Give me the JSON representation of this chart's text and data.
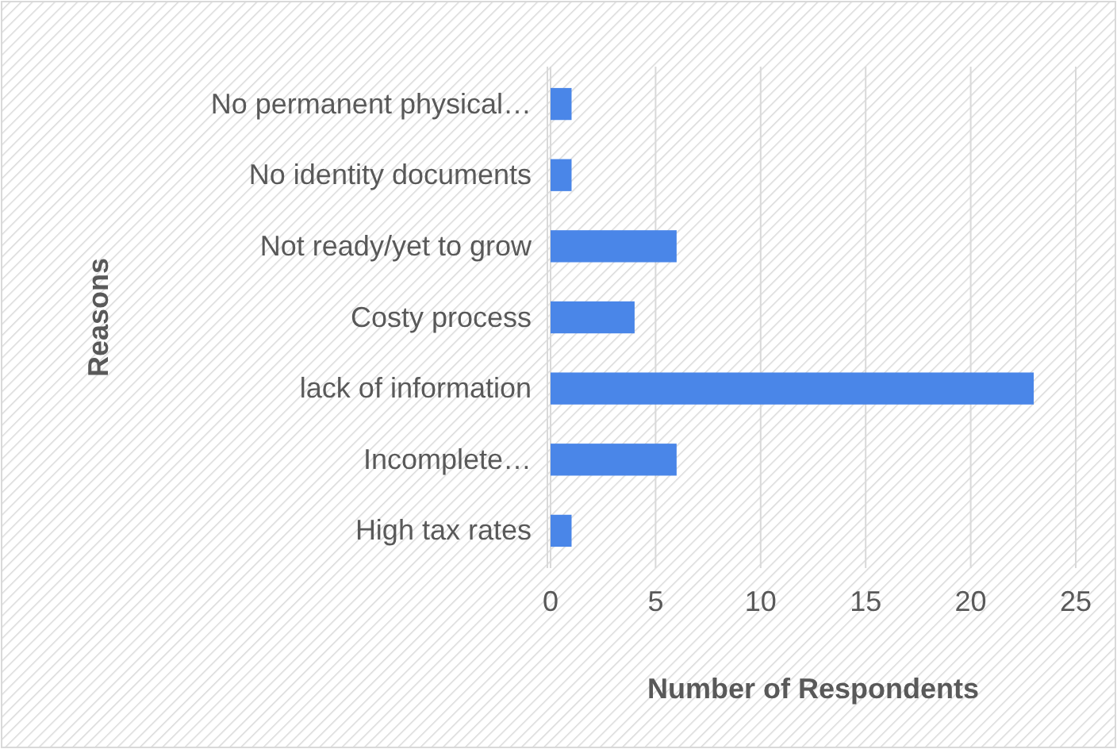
{
  "chart_data": {
    "type": "bar",
    "orientation": "horizontal",
    "ylabel": "Reasons",
    "xlabel": "Number of Respondents",
    "categories": [
      "No permanent physical…",
      "No identity documents",
      "Not ready/yet to grow",
      "Costy process",
      "lack of information",
      "Incomplete…",
      "High tax rates"
    ],
    "values": [
      1,
      1,
      6,
      4,
      23,
      6,
      1
    ],
    "color": "#4a86e8",
    "xlim": [
      0,
      25
    ],
    "xticks": [
      0,
      5,
      10,
      15,
      20,
      25
    ],
    "grid": "x"
  }
}
